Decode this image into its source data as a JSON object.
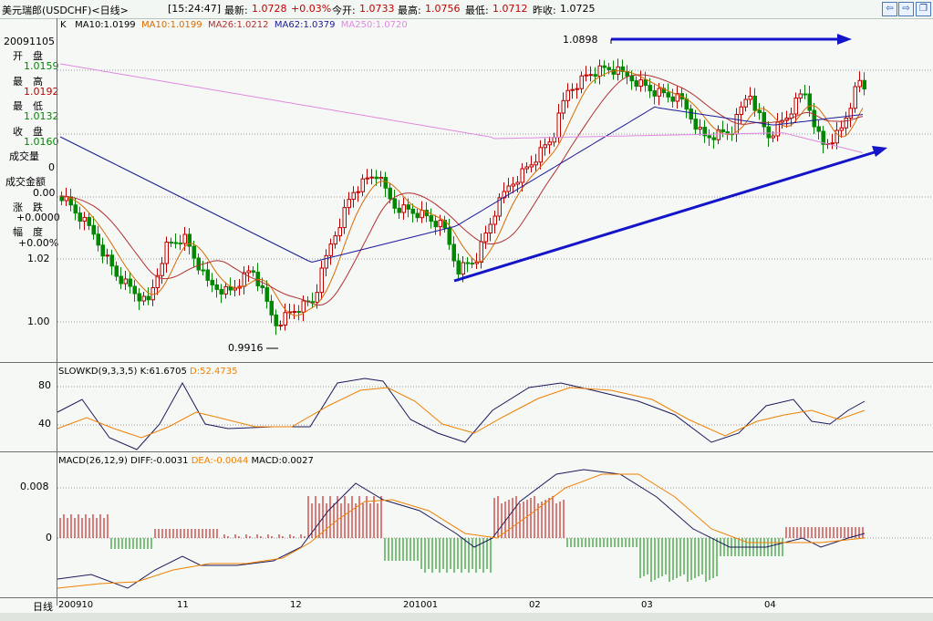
{
  "header": {
    "symbol": "美元瑞郎(USDCHF)<日线>",
    "time": "[15:24:47]",
    "last_label": "最新:",
    "last": "1.0728",
    "change": "+0.03%",
    "open_label": "今开:",
    "open": "1.0733",
    "high_label": "最高:",
    "high": "1.0756",
    "low_label": "最低:",
    "low": "1.0712",
    "prev_label": "昨收:",
    "prev": "1.0725"
  },
  "ma_legend": {
    "k": "K",
    "ma10a": "MA10:1.0199",
    "ma10b": "MA10:1.0199",
    "ma26": "MA26:1.0212",
    "ma62": "MA62:1.0379",
    "ma250": "MA250:1.0720"
  },
  "info_panel": {
    "date": "20091105",
    "open_label": "开　盘",
    "open": "1.0159",
    "high_label": "最　高",
    "high": "1.0192",
    "low_label": "最　低",
    "low": "1.0132",
    "close_label": "收　盘",
    "close": "1.0160",
    "volume_label": "成交量",
    "volume": "0",
    "amount_label": "成交金额",
    "amount": "0.00",
    "change_label": "涨　跌",
    "change": "+0.0000",
    "range_label": "幅　度",
    "range": "+0.00%"
  },
  "main_axis": {
    "ticks": [
      "1.02",
      "1.00"
    ]
  },
  "annotations": {
    "peak": "1.0898",
    "trough": "0.9916"
  },
  "slowkd": {
    "legend": "SLOWKD(9,3,3,5)",
    "k": "K:61.6705",
    "d": "D:52.4735",
    "ticks": [
      "80",
      "40"
    ]
  },
  "macd": {
    "legend": "MACD(26,12,9)",
    "diff": "DIFF:-0.0031",
    "dea": "DEA:-0.0044",
    "macd": "MACD:0.0027",
    "ticks": [
      "0.008",
      "0"
    ]
  },
  "x_axis": {
    "label": "日线",
    "ticks": [
      "200910",
      "11",
      "12",
      "201001",
      "02",
      "03",
      "04"
    ]
  },
  "nav_icons": [
    "arrow-left-icon",
    "arrow-right-icon",
    "restore-icon"
  ],
  "colors": {
    "up": "#c00000",
    "down": "#008800",
    "ma10": "#d86a00",
    "ma26": "#b03030",
    "ma62": "#1a1a9a",
    "ma250": "#e08ae0",
    "trend": "#1414c8",
    "k_line": "#1a1a5a",
    "d_line": "#f08000"
  }
}
